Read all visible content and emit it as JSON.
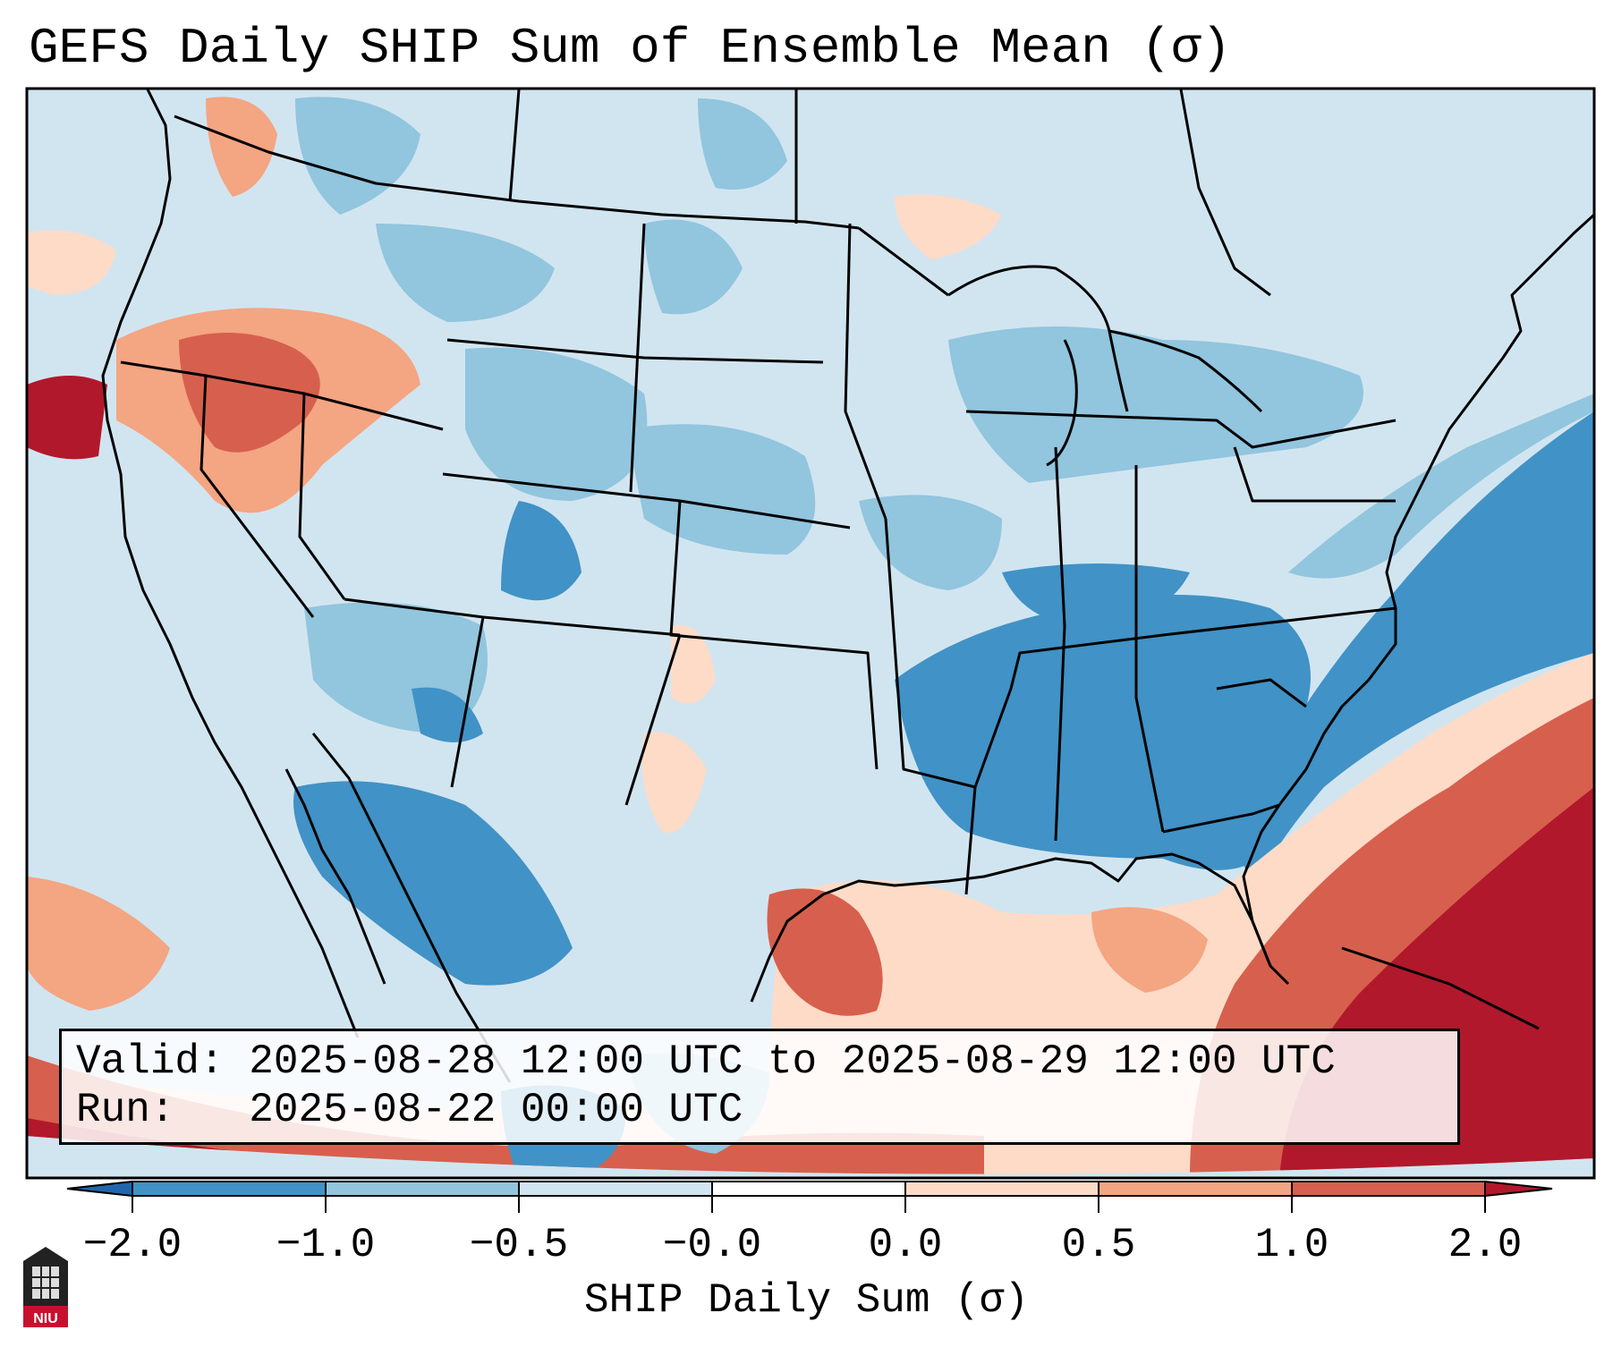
{
  "title": "GEFS Daily SHIP Sum of Ensemble Mean (σ)",
  "info": {
    "valid_label": "Valid:",
    "valid_value": "2025-08-28 12:00 UTC to 2025-08-29 12:00 UTC",
    "run_label": "Run:",
    "run_value": "2025-08-22 00:00 UTC"
  },
  "colorbar": {
    "label": "SHIP Daily Sum (σ)",
    "ticks": [
      "−2.0",
      "−1.0",
      "−0.5",
      "−0.0",
      "0.0",
      "0.5",
      "1.0",
      "2.0"
    ],
    "colors": [
      "#4192c6",
      "#92c5de",
      "#d1e5f0",
      "#ffffff",
      "#fddbc7",
      "#f4a582",
      "#d6604d",
      "#b2182b"
    ],
    "extend": "both"
  },
  "logo": {
    "text": "NIU"
  }
}
